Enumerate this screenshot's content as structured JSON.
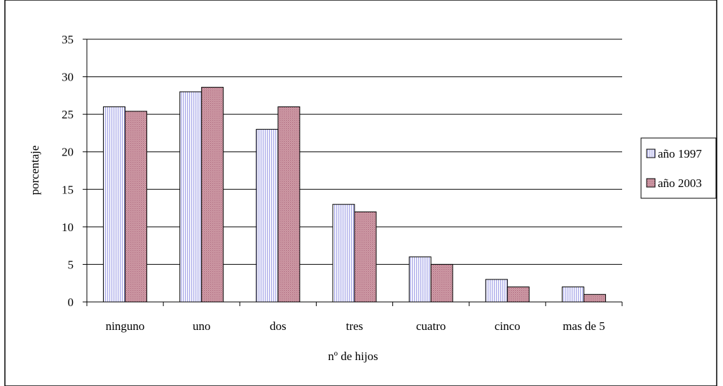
{
  "chart_data": {
    "type": "bar",
    "title": "",
    "xlabel": "nº de hijos",
    "ylabel": "porcentaje",
    "categories": [
      "ninguno",
      "uno",
      "dos",
      "tres",
      "cuatro",
      "cinco",
      "mas de 5"
    ],
    "series": [
      {
        "name": "año 1997",
        "values": [
          26,
          28,
          23,
          13,
          6,
          3,
          2
        ],
        "color": "#CCCCFF",
        "pattern": "vertical-stripes"
      },
      {
        "name": "año 2003",
        "values": [
          25.4,
          28.6,
          26,
          12,
          5,
          2,
          1
        ],
        "color": "#CC8899",
        "pattern": "dots"
      }
    ],
    "ylim": [
      0,
      35
    ],
    "yticks": [
      0,
      5,
      10,
      15,
      20,
      25,
      30,
      35
    ],
    "grid": true,
    "legend_position": "right"
  }
}
